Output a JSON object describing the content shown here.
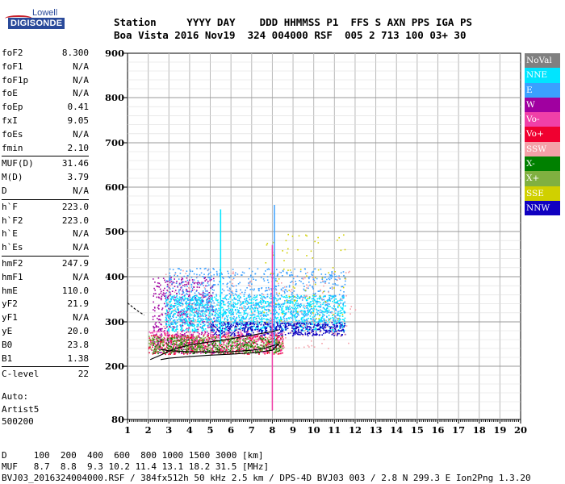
{
  "logo": {
    "line1": "Lowell",
    "line2": "DIGISONDE"
  },
  "header": {
    "line1": "Station     YYYY DAY    DDD HHMMSS P1  FFS S AXN PPS IGA PS",
    "line2": "Boa Vista 2016 Nov19  324 004000 RSF  005 2 713 100 03+ 30"
  },
  "params": [
    [
      {
        "k": "foF2",
        "v": "8.300"
      },
      {
        "k": "foF1",
        "v": "N/A"
      },
      {
        "k": "foF1p",
        "v": "N/A"
      },
      {
        "k": "foE",
        "v": "N/A"
      },
      {
        "k": "foEp",
        "v": "0.41"
      },
      {
        "k": "fxI",
        "v": "9.05"
      },
      {
        "k": "foEs",
        "v": "N/A"
      },
      {
        "k": "fmin",
        "v": "2.10"
      }
    ],
    [
      {
        "k": "MUF(D)",
        "v": "31.46"
      },
      {
        "k": "M(D)",
        "v": "3.79"
      },
      {
        "k": "D",
        "v": "N/A"
      }
    ],
    [
      {
        "k": "h`F",
        "v": "223.0"
      },
      {
        "k": "h`F2",
        "v": "223.0"
      },
      {
        "k": "h`E",
        "v": "N/A"
      },
      {
        "k": "h`Es",
        "v": "N/A"
      }
    ],
    [
      {
        "k": "hmF2",
        "v": "247.9"
      },
      {
        "k": "hmF1",
        "v": "N/A"
      },
      {
        "k": "hmE",
        "v": "110.0"
      },
      {
        "k": "yF2",
        "v": "21.9"
      },
      {
        "k": "yF1",
        "v": "N/A"
      },
      {
        "k": "yE",
        "v": "20.0"
      },
      {
        "k": "B0",
        "v": "23.8"
      },
      {
        "k": "B1",
        "v": "1.38"
      }
    ],
    [
      {
        "k": "C-level",
        "v": "22"
      }
    ]
  ],
  "auto": [
    "Auto:",
    "Artist5",
    "500200"
  ],
  "legend": [
    {
      "label": "NoVal",
      "color": "#808080"
    },
    {
      "label": "NNE",
      "color": "#00e5ff"
    },
    {
      "label": "E",
      "color": "#3aa0ff"
    },
    {
      "label": "W",
      "color": "#a000a0"
    },
    {
      "label": "Vo-",
      "color": "#f040a8"
    },
    {
      "label": "Vo+",
      "color": "#f00030"
    },
    {
      "label": "SSW",
      "color": "#f4a0a8"
    },
    {
      "label": "X-",
      "color": "#008000"
    },
    {
      "label": "X+",
      "color": "#80b040"
    },
    {
      "label": "SSE",
      "color": "#d0d000"
    },
    {
      "label": "NNW",
      "color": "#1000c0"
    }
  ],
  "footer": {
    "line1": "D     100  200  400  600  800 1000 1500 3000 [km]",
    "line2": "MUF   8.7  8.8  9.3 10.2 11.4 13.1 18.2 31.5 [MHz]",
    "line3": "BVJ03_2016324004000.RSF / 384fx512h 50 kHz 2.5 km / DPS-4D BVJ03 003 / 2.8 N 299.3 E Ion2Png 1.3.20"
  },
  "chart_data": {
    "type": "scatter",
    "xlabel": "",
    "ylabel": "",
    "xlim": [
      1,
      20
    ],
    "ylim": [
      80,
      900
    ],
    "x_ticks": [
      1,
      2,
      3,
      4,
      5,
      6,
      7,
      8,
      9,
      10,
      11,
      12,
      13,
      14,
      15,
      16,
      17,
      18,
      19,
      20
    ],
    "y_ticks": [
      80,
      200,
      300,
      400,
      500,
      600,
      700,
      800,
      900
    ],
    "grid": true,
    "legend_position": "right",
    "traces": {
      "ordinary": {
        "x": [
          2.1,
          2.6,
          3.2,
          4.0,
          5.0,
          6.0,
          7.0,
          8.0,
          8.3
        ],
        "y": [
          215,
          225,
          238,
          248,
          255,
          262,
          270,
          278,
          282
        ]
      },
      "extraordinary": {
        "x": [
          2.6,
          3.0,
          4.0,
          5.0,
          6.0,
          7.0,
          7.6,
          8.0,
          8.3,
          8.0,
          7.0,
          6.0,
          5.0,
          4.0,
          3.0,
          2.6
        ],
        "y": [
          238,
          235,
          233,
          232,
          233,
          236,
          240,
          246,
          250,
          236,
          230,
          227,
          225,
          222,
          218,
          215
        ]
      },
      "lower_branch": {
        "x": [
          1.0,
          1.4,
          1.8
        ],
        "y": [
          342,
          327,
          315
        ]
      }
    },
    "echo_regions": [
      {
        "color": "W",
        "x": [
          2.2,
          5.2
        ],
        "y": [
          230,
          400
        ]
      },
      {
        "color": "NNE",
        "x": [
          2.8,
          11.5
        ],
        "y": [
          280,
          360
        ]
      },
      {
        "color": "E",
        "x": [
          2.8,
          11.5
        ],
        "y": [
          290,
          420
        ]
      },
      {
        "color": "NNW",
        "x": [
          5.0,
          11.5
        ],
        "y": [
          270,
          300
        ]
      },
      {
        "color": "Vo+",
        "x": [
          2.0,
          8.5
        ],
        "y": [
          228,
          272
        ]
      },
      {
        "color": "Vo-",
        "x": [
          2.0,
          8.5
        ],
        "y": [
          230,
          280
        ]
      },
      {
        "color": "X-",
        "x": [
          2.2,
          8.5
        ],
        "y": [
          230,
          265
        ]
      },
      {
        "color": "X+",
        "x": [
          2.0,
          8.5
        ],
        "y": [
          232,
          270
        ]
      },
      {
        "color": "SSW",
        "x": [
          2.5,
          12.0
        ],
        "y": [
          240,
          420
        ]
      },
      {
        "color": "SSE",
        "x": [
          7.5,
          11.5
        ],
        "y": [
          300,
          500
        ]
      }
    ],
    "spikes": [
      {
        "x": 8.0,
        "y": [
          100,
          470
        ],
        "color": "Vo-"
      },
      {
        "x": 5.5,
        "y": [
          250,
          550
        ],
        "color": "NNE"
      },
      {
        "x": 8.1,
        "y": [
          240,
          560
        ],
        "color": "E"
      }
    ]
  }
}
